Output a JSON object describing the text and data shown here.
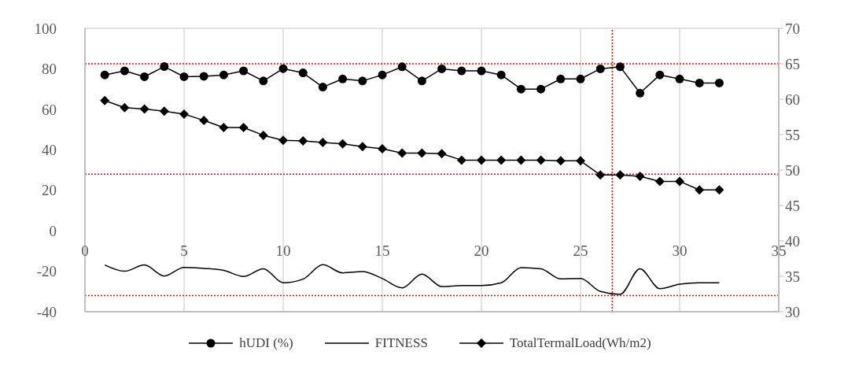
{
  "chart_data": {
    "type": "line",
    "x": [
      1,
      2,
      3,
      4,
      5,
      6,
      7,
      8,
      9,
      10,
      11,
      12,
      13,
      14,
      15,
      16,
      17,
      18,
      19,
      20,
      21,
      22,
      23,
      24,
      25,
      26,
      27,
      28,
      29,
      30,
      31,
      32
    ],
    "series": [
      {
        "name": "hUDI (%)",
        "color": "#000000",
        "marker": "circle",
        "values": [
          77,
          79,
          76.1,
          81.1,
          76.1,
          76.3,
          77,
          79,
          74,
          80.1,
          78,
          71,
          75,
          74,
          77,
          81,
          74,
          80,
          79,
          79,
          77,
          70,
          70,
          75,
          75,
          80,
          81,
          68,
          77,
          75,
          73,
          73
        ]
      },
      {
        "name": "FITNESS",
        "color": "#000000",
        "marker": "none",
        "values": [
          -16.9,
          -20,
          -16.9,
          -22.4,
          -18.1,
          -18.6,
          -19.6,
          -22.6,
          -18.8,
          -25.7,
          -23.9,
          -16.8,
          -20.8,
          -20.2,
          -23.6,
          -28.2,
          -21.4,
          -27.6,
          -27.1,
          -27.1,
          -25.7,
          -18.2,
          -18.8,
          -23.8,
          -23.6,
          -30,
          -31.4,
          -18.8,
          -28.6,
          -26.4,
          -25.7,
          -25.7
        ]
      },
      {
        "name": "TotalTermalLoad(Wh/m2)",
        "color": "#000000",
        "marker": "diamond",
        "axis": "y2",
        "values": [
          59.8,
          58.8,
          58.6,
          58.3,
          57.9,
          57,
          56,
          56,
          54.9,
          54.2,
          54.1,
          53.9,
          53.7,
          53.3,
          53,
          52.4,
          52.4,
          52.3,
          51.4,
          51.4,
          51.4,
          51.4,
          51.4,
          51.3,
          51.3,
          49.3,
          49.3,
          49.1,
          48.4,
          48.4,
          47.2,
          47.2
        ]
      }
    ],
    "xlim": [
      0,
      35
    ],
    "xticks": [
      0,
      5,
      10,
      15,
      20,
      25,
      30,
      35
    ],
    "ylim": [
      -40,
      100
    ],
    "yticks": [
      -40,
      -20,
      0,
      20,
      40,
      60,
      80,
      100
    ],
    "y2lim": [
      30,
      70
    ],
    "y2ticks": [
      30,
      35,
      40,
      45,
      50,
      55,
      60,
      65,
      70
    ],
    "ref_lines": [
      {
        "axis": "y",
        "value": 82.5,
        "color": "#ff0000",
        "line_style": "dotted"
      },
      {
        "axis": "y",
        "value": 28,
        "color": "#ff0000",
        "line_style": "dotted"
      },
      {
        "axis": "y",
        "value": -32,
        "color": "#ff0000",
        "line_style": "dotted"
      },
      {
        "axis": "x",
        "value": 26.6,
        "color": "#ff0000",
        "line_style": "dotted"
      }
    ],
    "grid": true,
    "legend": "bottom",
    "line_style": "solid"
  }
}
